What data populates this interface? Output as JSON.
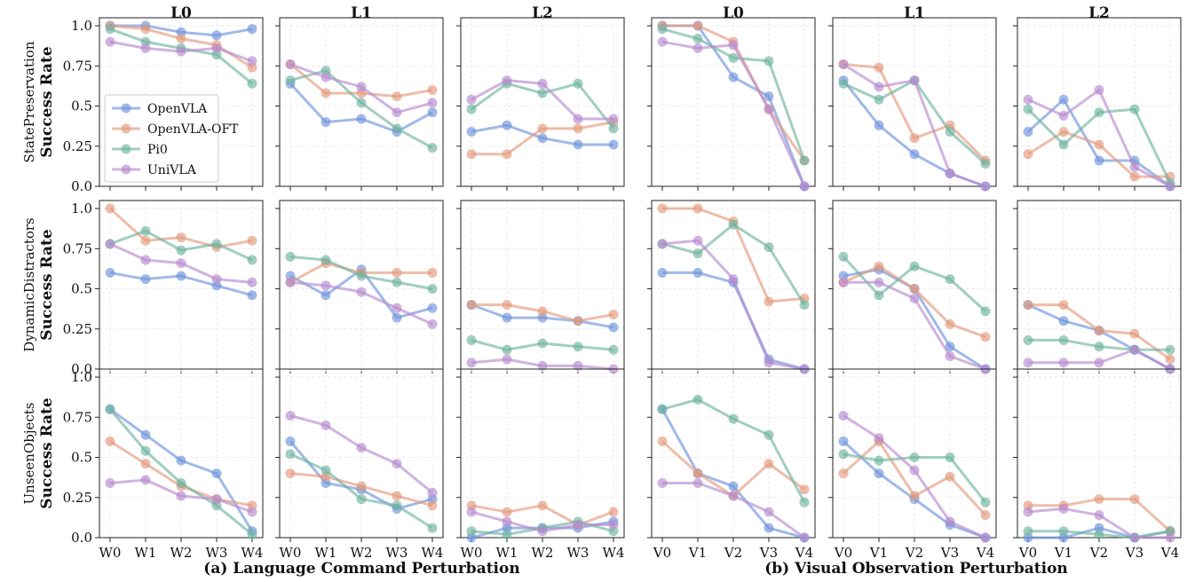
{
  "chart_data": {
    "type": "line",
    "ylim": [
      0,
      1.05
    ],
    "y_ticks": [
      0,
      0.25,
      0.5,
      0.75,
      1.0
    ],
    "y_tick_labels": [
      "0.0",
      "0.25",
      "0.5",
      "0.75",
      "1.0"
    ],
    "series_names": [
      "OpenVLA",
      "OpenVLA-OFT",
      "Pi0",
      "UniVLA"
    ],
    "series_colors": [
      "#6f94dc",
      "#e3997d",
      "#6eb3a0",
      "#b78ad0"
    ],
    "column_titles": [
      "L0",
      "L1",
      "L2",
      "L0",
      "L1",
      "L2"
    ],
    "x_labels_language": [
      "W0",
      "W1",
      "W2",
      "W3",
      "W4"
    ],
    "x_labels_visual": [
      "V0",
      "V1",
      "V2",
      "V3",
      "V4"
    ],
    "group_labels": [
      "(a) Language Command Perturbation",
      "(b) Visual Observation Perturbation"
    ],
    "row_labels": [
      {
        "name": "StatePreservation",
        "metric": "Success Rate"
      },
      {
        "name": "DynamicDistractors",
        "metric": "Success Rate"
      },
      {
        "name": "UnseenObjects",
        "metric": "Success Rate"
      }
    ],
    "panels": [
      [
        [
          [
            1.0,
            1.0,
            0.96,
            0.94,
            0.98
          ],
          [
            1.0,
            0.98,
            0.92,
            0.88,
            0.74
          ],
          [
            0.98,
            0.9,
            0.86,
            0.82,
            0.64
          ],
          [
            0.9,
            0.86,
            0.84,
            0.86,
            0.78
          ]
        ],
        [
          [
            0.64,
            0.4,
            0.42,
            0.34,
            0.46
          ],
          [
            0.76,
            0.58,
            0.58,
            0.56,
            0.6
          ],
          [
            0.66,
            0.72,
            0.52,
            0.36,
            0.24
          ],
          [
            0.76,
            0.68,
            0.62,
            0.46,
            0.52
          ]
        ],
        [
          [
            0.34,
            0.38,
            0.3,
            0.26,
            0.26
          ],
          [
            0.2,
            0.2,
            0.36,
            0.36,
            0.4
          ],
          [
            0.48,
            0.64,
            0.58,
            0.64,
            0.36
          ],
          [
            0.54,
            0.66,
            0.64,
            0.42,
            0.42
          ]
        ],
        [
          [
            1.0,
            1.0,
            0.68,
            0.56,
            0.0
          ],
          [
            1.0,
            1.0,
            0.9,
            0.48,
            0.16
          ],
          [
            0.98,
            0.92,
            0.8,
            0.78,
            0.16
          ],
          [
            0.9,
            0.86,
            0.88,
            0.48,
            0.0
          ]
        ],
        [
          [
            0.66,
            0.38,
            0.2,
            0.08,
            0.0
          ],
          [
            0.76,
            0.74,
            0.3,
            0.38,
            0.16
          ],
          [
            0.64,
            0.54,
            0.66,
            0.34,
            0.14
          ],
          [
            0.76,
            0.62,
            0.66,
            0.08,
            0.0
          ]
        ],
        [
          [
            0.34,
            0.54,
            0.16,
            0.16,
            0.0
          ],
          [
            0.2,
            0.34,
            0.26,
            0.06,
            0.06
          ],
          [
            0.48,
            0.26,
            0.46,
            0.48,
            0.02
          ],
          [
            0.54,
            0.44,
            0.6,
            0.12,
            0.0
          ]
        ]
      ],
      [
        [
          [
            0.6,
            0.56,
            0.58,
            0.52,
            0.46
          ],
          [
            1.0,
            0.8,
            0.82,
            0.76,
            0.8
          ],
          [
            0.78,
            0.86,
            0.74,
            0.78,
            0.68
          ],
          [
            0.78,
            0.68,
            0.66,
            0.56,
            0.54
          ]
        ],
        [
          [
            0.58,
            0.46,
            0.62,
            0.32,
            0.38
          ],
          [
            0.54,
            0.66,
            0.6,
            0.6,
            0.6
          ],
          [
            0.7,
            0.68,
            0.58,
            0.54,
            0.5
          ],
          [
            0.54,
            0.52,
            0.48,
            0.38,
            0.28
          ]
        ],
        [
          [
            0.4,
            0.32,
            0.32,
            0.3,
            0.26
          ],
          [
            0.4,
            0.4,
            0.36,
            0.3,
            0.34
          ],
          [
            0.18,
            0.12,
            0.16,
            0.14,
            0.12
          ],
          [
            0.04,
            0.06,
            0.02,
            0.02,
            0.0
          ]
        ],
        [
          [
            0.6,
            0.6,
            0.54,
            0.06,
            0.0
          ],
          [
            1.0,
            1.0,
            0.92,
            0.42,
            0.44
          ],
          [
            0.78,
            0.72,
            0.9,
            0.76,
            0.4
          ],
          [
            0.78,
            0.8,
            0.56,
            0.04,
            0.0
          ]
        ],
        [
          [
            0.58,
            0.62,
            0.5,
            0.14,
            0.0
          ],
          [
            0.54,
            0.64,
            0.5,
            0.28,
            0.2
          ],
          [
            0.7,
            0.46,
            0.64,
            0.56,
            0.36
          ],
          [
            0.54,
            0.54,
            0.44,
            0.08,
            0.0
          ]
        ],
        [
          [
            0.4,
            0.3,
            0.24,
            0.12,
            0.0
          ],
          [
            0.4,
            0.4,
            0.24,
            0.22,
            0.06
          ],
          [
            0.18,
            0.18,
            0.14,
            0.12,
            0.12
          ],
          [
            0.04,
            0.04,
            0.04,
            0.12,
            0.0
          ]
        ]
      ],
      [
        [
          [
            0.8,
            0.64,
            0.48,
            0.4,
            0.04
          ],
          [
            0.6,
            0.46,
            0.32,
            0.24,
            0.2
          ],
          [
            0.8,
            0.54,
            0.34,
            0.2,
            0.02
          ],
          [
            0.34,
            0.36,
            0.26,
            0.24,
            0.16
          ]
        ],
        [
          [
            0.6,
            0.34,
            0.3,
            0.18,
            0.24
          ],
          [
            0.4,
            0.38,
            0.32,
            0.26,
            0.2
          ],
          [
            0.52,
            0.42,
            0.24,
            0.2,
            0.06
          ],
          [
            0.76,
            0.7,
            0.56,
            0.46,
            0.28
          ]
        ],
        [
          [
            0.0,
            0.06,
            0.06,
            0.06,
            0.1
          ],
          [
            0.2,
            0.16,
            0.2,
            0.08,
            0.16
          ],
          [
            0.04,
            0.02,
            0.06,
            0.1,
            0.04
          ],
          [
            0.16,
            0.1,
            0.04,
            0.08,
            0.08
          ]
        ],
        [
          [
            0.8,
            0.4,
            0.32,
            0.06,
            0.0
          ],
          [
            0.6,
            0.4,
            0.26,
            0.46,
            0.3
          ],
          [
            0.8,
            0.86,
            0.74,
            0.64,
            0.22
          ],
          [
            0.34,
            0.34,
            0.26,
            0.16,
            0.0
          ]
        ],
        [
          [
            0.6,
            0.4,
            0.24,
            0.08,
            0.0
          ],
          [
            0.4,
            0.6,
            0.26,
            0.38,
            0.14
          ],
          [
            0.52,
            0.48,
            0.5,
            0.5,
            0.22
          ],
          [
            0.76,
            0.62,
            0.42,
            0.1,
            0.0
          ]
        ],
        [
          [
            0.0,
            0.0,
            0.06,
            0.0,
            0.04
          ],
          [
            0.2,
            0.2,
            0.24,
            0.24,
            0.04
          ],
          [
            0.04,
            0.04,
            0.02,
            0.0,
            0.04
          ],
          [
            0.16,
            0.18,
            0.14,
            0.0,
            0.0
          ]
        ]
      ]
    ]
  }
}
